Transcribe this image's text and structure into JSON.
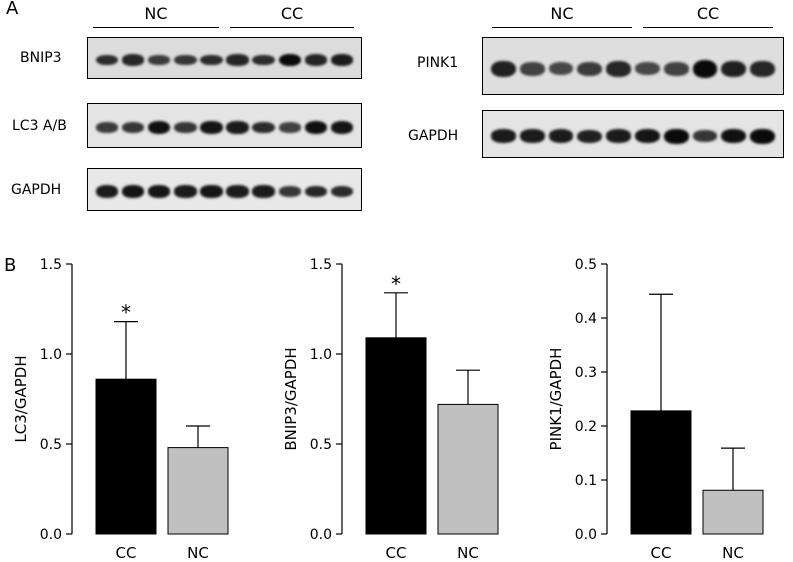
{
  "panel_a": {
    "letter": "A",
    "left": {
      "groups": [
        "NC",
        "CC"
      ],
      "rows": [
        {
          "label": "BNIP3",
          "bg": "#dcdcdc",
          "intensities": [
            0.7,
            0.75,
            0.55,
            0.6,
            0.7,
            0.75,
            0.7,
            1.0,
            0.75,
            0.85
          ]
        },
        {
          "label": "LC3 A/B",
          "bg": "#e4e4e4",
          "intensities": [
            0.55,
            0.6,
            0.95,
            0.6,
            0.9,
            0.85,
            0.7,
            0.5,
            0.95,
            0.9
          ]
        },
        {
          "label": "GAPDH",
          "bg": "#e8e8e8",
          "intensities": [
            0.85,
            0.9,
            0.9,
            0.85,
            0.9,
            0.85,
            0.85,
            0.6,
            0.75,
            0.7
          ]
        }
      ]
    },
    "right": {
      "groups": [
        "NC",
        "CC"
      ],
      "rows": [
        {
          "label": "PINK1",
          "bg": "#dedede",
          "intensities": [
            0.8,
            0.5,
            0.45,
            0.55,
            0.75,
            0.45,
            0.5,
            1.0,
            0.8,
            0.75
          ]
        },
        {
          "label": "GAPDH",
          "bg": "#e4e4e4",
          "intensities": [
            0.85,
            0.85,
            0.85,
            0.8,
            0.85,
            0.9,
            1.0,
            0.6,
            0.95,
            1.0
          ]
        }
      ]
    }
  },
  "panel_b": {
    "letter": "B"
  },
  "chart_data": [
    {
      "type": "bar",
      "categories": [
        "CC",
        "NC"
      ],
      "values": [
        0.86,
        0.48
      ],
      "errors": [
        0.32,
        0.12
      ],
      "colors": [
        "#000000",
        "#c0c0c0"
      ],
      "significance": [
        "*",
        ""
      ],
      "ylabel": "LC3/GAPDH",
      "ylim": [
        0,
        1.5
      ],
      "yticks": [
        "0.0",
        "0.5",
        "1.0",
        "1.5"
      ]
    },
    {
      "type": "bar",
      "categories": [
        "CC",
        "NC"
      ],
      "values": [
        1.09,
        0.72
      ],
      "errors": [
        0.25,
        0.19
      ],
      "colors": [
        "#000000",
        "#c0c0c0"
      ],
      "significance": [
        "*",
        ""
      ],
      "ylabel": "BNIP3/GAPDH",
      "ylim": [
        0,
        1.5
      ],
      "yticks": [
        "0.0",
        "0.5",
        "1.0",
        "1.5"
      ]
    },
    {
      "type": "bar",
      "categories": [
        "CC",
        "NC"
      ],
      "values": [
        0.228,
        0.081
      ],
      "errors": [
        0.216,
        0.078
      ],
      "colors": [
        "#000000",
        "#c0c0c0"
      ],
      "significance": [
        "",
        ""
      ],
      "ylabel": "PINK1/GAPDH",
      "ylim": [
        0,
        0.5
      ],
      "yticks": [
        "0.0",
        "0.1",
        "0.2",
        "0.3",
        "0.4",
        "0.5"
      ]
    }
  ]
}
